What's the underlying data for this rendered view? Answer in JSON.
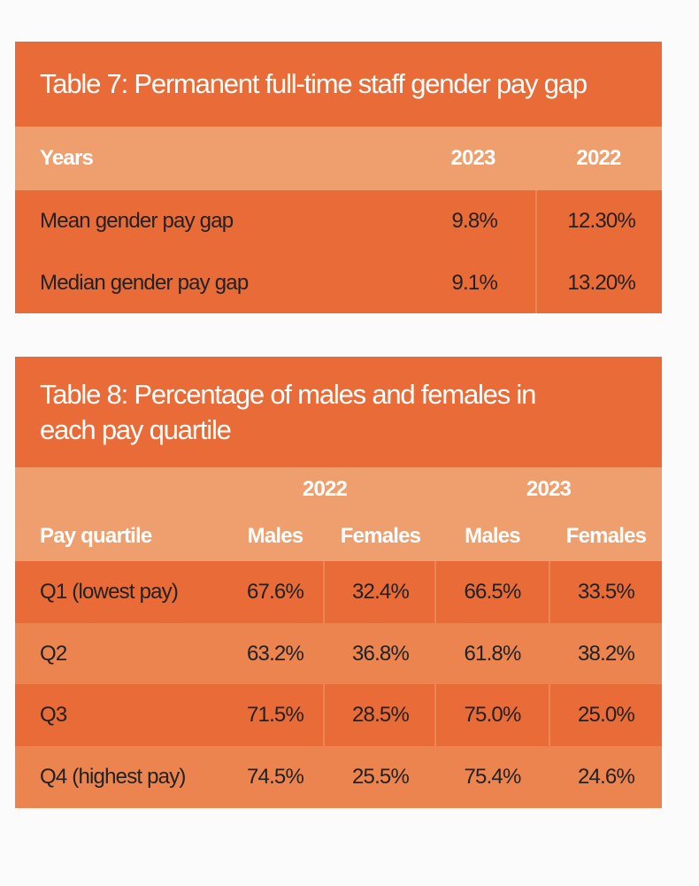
{
  "table7": {
    "title": "Table 7: Permanent full-time staff gender pay gap",
    "headers": [
      "Years",
      "2023",
      "2022"
    ],
    "rows": [
      {
        "label": "Mean gender pay gap",
        "y2023": "9.8%",
        "y2022": "12.30%"
      },
      {
        "label": "Median gender pay gap",
        "y2023": "9.1%",
        "y2022": "13.20%"
      }
    ]
  },
  "table8": {
    "title": "Table 8: Percentage of males and females in each pay quartile",
    "year_headers": [
      "2022",
      "2023"
    ],
    "headers": [
      "Pay quartile",
      "Males",
      "Females",
      "Males",
      "Females"
    ],
    "rows": [
      {
        "label": "Q1 (lowest pay)",
        "values": [
          "67.6%",
          "32.4%",
          "66.5%",
          "33.5%"
        ]
      },
      {
        "label": "Q2",
        "values": [
          "63.2%",
          "36.8%",
          "61.8%",
          "38.2%"
        ]
      },
      {
        "label": "Q3",
        "values": [
          "71.5%",
          "28.5%",
          "75.0%",
          "25.0%"
        ]
      },
      {
        "label": "Q4 (highest pay)",
        "values": [
          "74.5%",
          "25.5%",
          "75.4%",
          "24.6%"
        ]
      }
    ]
  },
  "colors": {
    "dark": "#e96b38",
    "header": "#ef9e6e",
    "light_row": "#ec8450"
  }
}
